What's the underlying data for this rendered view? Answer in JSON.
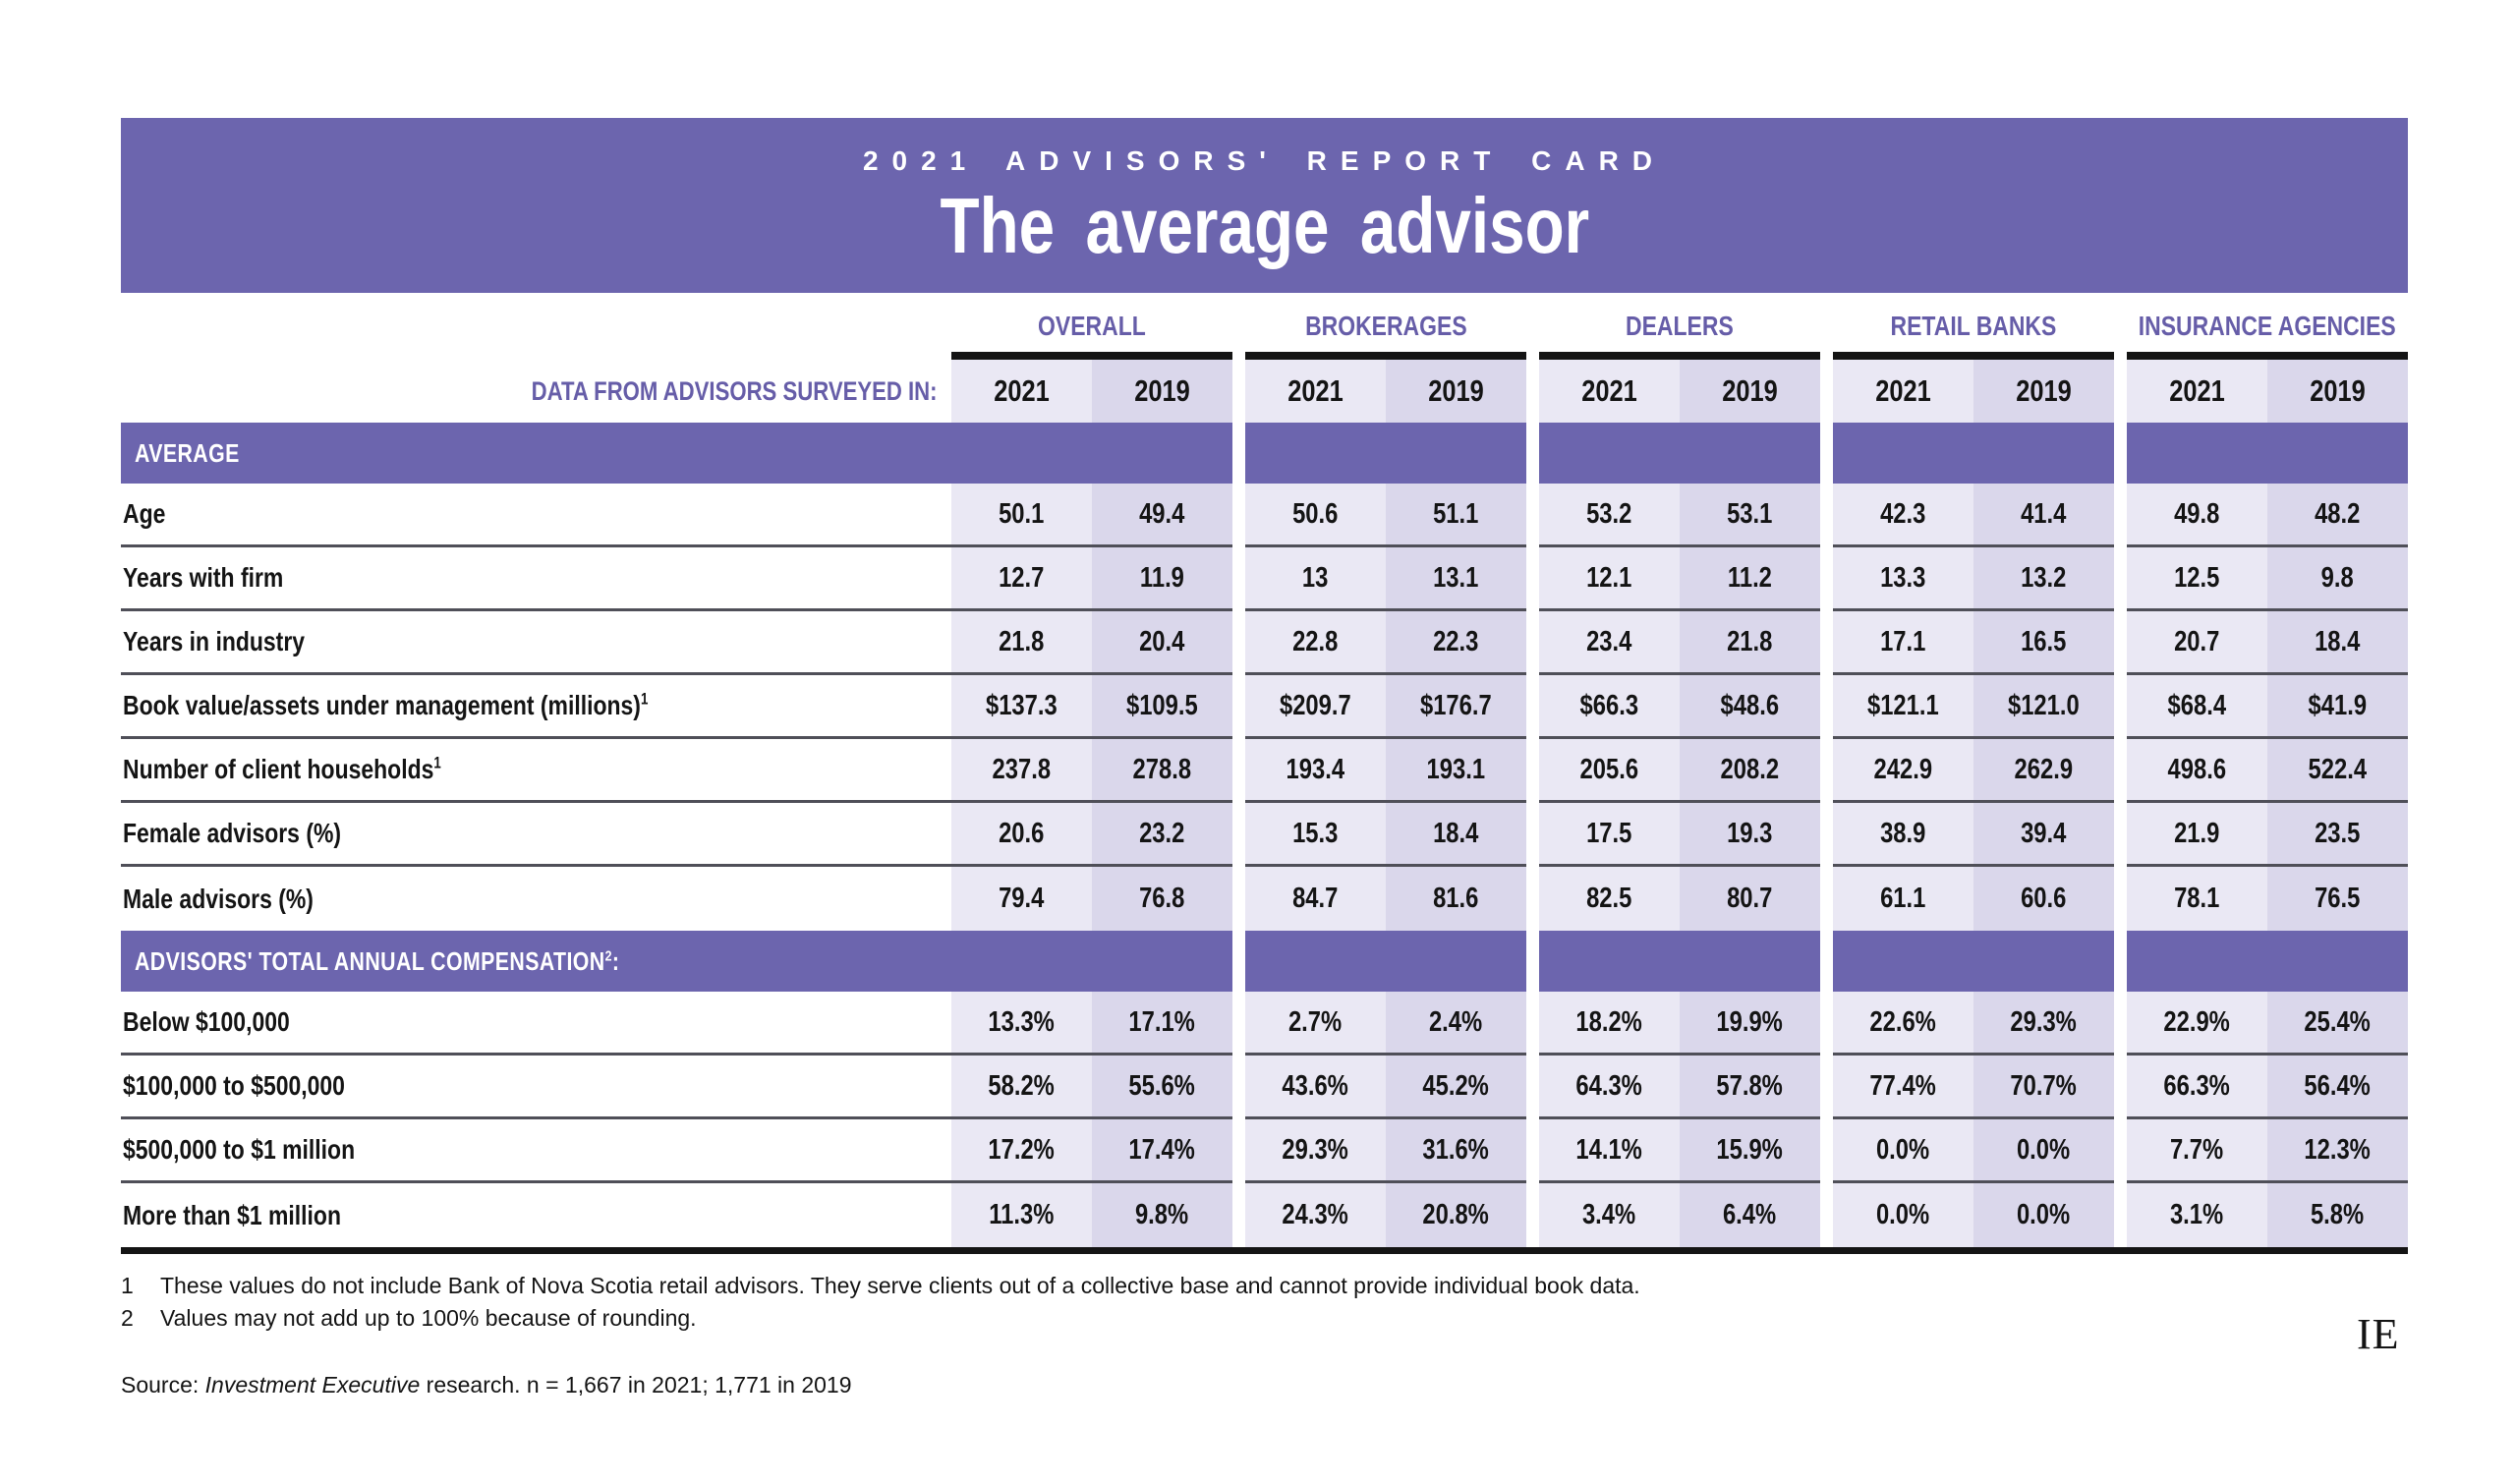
{
  "banner": {
    "kicker": "2021 ADVISORS' REPORT CARD",
    "title": "The  average advisor"
  },
  "colors": {
    "banner_purple": "#6C65AE",
    "section_purple": "#6C65AE",
    "heading_purple": "#665DA8",
    "col_2021_tint": "#EAE8F4",
    "col_2019_tint": "#DAD7EB",
    "rule_gray": "#4F4F58",
    "ink_black": "#141414"
  },
  "table": {
    "corner_label": "DATA FROM ADVISORS SURVEYED IN:",
    "groups": [
      "OVERALL",
      "BROKERAGES",
      "DEALERS",
      "RETAIL BANKS",
      "INSURANCE AGENCIES"
    ],
    "year_headers": [
      "2021",
      "2019"
    ],
    "rows": [
      {
        "type": "section",
        "label": "AVERAGE"
      },
      {
        "type": "data",
        "label": "Age",
        "values": [
          "50.1",
          "49.4",
          "50.6",
          "51.1",
          "53.2",
          "53.1",
          "42.3",
          "41.4",
          "49.8",
          "48.2"
        ]
      },
      {
        "type": "data",
        "label": "Years with firm",
        "values": [
          "12.7",
          "11.9",
          "13",
          "13.1",
          "12.1",
          "11.2",
          "13.3",
          "13.2",
          "12.5",
          "9.8"
        ]
      },
      {
        "type": "data",
        "label": "Years in industry",
        "values": [
          "21.8",
          "20.4",
          "22.8",
          "22.3",
          "23.4",
          "21.8",
          "17.1",
          "16.5",
          "20.7",
          "18.4"
        ]
      },
      {
        "type": "data",
        "label": "Book value/assets under management (millions)",
        "sup": "1",
        "values": [
          "$137.3",
          "$109.5",
          "$209.7",
          "$176.7",
          "$66.3",
          "$48.6",
          "$121.1",
          "$121.0",
          "$68.4",
          "$41.9"
        ]
      },
      {
        "type": "data",
        "label": "Number of client households",
        "sup": "1",
        "values": [
          "237.8",
          "278.8",
          "193.4",
          "193.1",
          "205.6",
          "208.2",
          "242.9",
          "262.9",
          "498.6",
          "522.4"
        ]
      },
      {
        "type": "data",
        "label": "Female advisors (%)",
        "values": [
          "20.6",
          "23.2",
          "15.3",
          "18.4",
          "17.5",
          "19.3",
          "38.9",
          "39.4",
          "21.9",
          "23.5"
        ]
      },
      {
        "type": "data",
        "label": "Male advisors (%)",
        "values": [
          "79.4",
          "76.8",
          "84.7",
          "81.6",
          "82.5",
          "80.7",
          "61.1",
          "60.6",
          "78.1",
          "76.5"
        ]
      },
      {
        "type": "section",
        "label": "ADVISORS' TOTAL ANNUAL COMPENSATION",
        "sup": "2",
        "after": ":"
      },
      {
        "type": "data",
        "label": "Below $100,000",
        "values": [
          "13.3%",
          "17.1%",
          "2.7%",
          "2.4%",
          "18.2%",
          "19.9%",
          "22.6%",
          "29.3%",
          "22.9%",
          "25.4%"
        ]
      },
      {
        "type": "data",
        "label": "$100,000 to $500,000",
        "values": [
          "58.2%",
          "55.6%",
          "43.6%",
          "45.2%",
          "64.3%",
          "57.8%",
          "77.4%",
          "70.7%",
          "66.3%",
          "56.4%"
        ]
      },
      {
        "type": "data",
        "label": "$500,000 to $1 million",
        "values": [
          "17.2%",
          "17.4%",
          "29.3%",
          "31.6%",
          "14.1%",
          "15.9%",
          "0.0%",
          "0.0%",
          "7.7%",
          "12.3%"
        ]
      },
      {
        "type": "data",
        "label": "More than $1 million",
        "values": [
          "11.3%",
          "9.8%",
          "24.3%",
          "20.8%",
          "3.4%",
          "6.4%",
          "0.0%",
          "0.0%",
          "3.1%",
          "5.8%"
        ]
      }
    ]
  },
  "footnotes": [
    {
      "num": "1",
      "text": "These values do not include Bank of Nova Scotia retail advisors. They serve clients out of a collective base and cannot provide individual book data."
    },
    {
      "num": "2",
      "text": "Values may not add up to 100% because of rounding."
    }
  ],
  "source": {
    "prefix": "Source: ",
    "publication": "Investment Executive",
    "suffix": " research. n = 1,667 in 2021; 1,771 in 2019"
  },
  "logo": "IE",
  "chart_data": {
    "type": "table",
    "title": "2021 Advisors' Report Card — The average advisor",
    "column_groups": [
      "Overall",
      "Brokerages",
      "Dealers",
      "Retail Banks",
      "Insurance Agencies"
    ],
    "years_per_group": [
      2021,
      2019
    ],
    "sections": [
      {
        "label": "Average",
        "rows": [
          {
            "label": "Age",
            "values": [
              50.1,
              49.4,
              50.6,
              51.1,
              53.2,
              53.1,
              42.3,
              41.4,
              49.8,
              48.2
            ]
          },
          {
            "label": "Years with firm",
            "values": [
              12.7,
              11.9,
              13,
              13.1,
              12.1,
              11.2,
              13.3,
              13.2,
              12.5,
              9.8
            ]
          },
          {
            "label": "Years in industry",
            "values": [
              21.8,
              20.4,
              22.8,
              22.3,
              23.4,
              21.8,
              17.1,
              16.5,
              20.7,
              18.4
            ]
          },
          {
            "label": "Book value/assets under management (millions, $)",
            "footnote": 1,
            "values": [
              137.3,
              109.5,
              209.7,
              176.7,
              66.3,
              48.6,
              121.1,
              121.0,
              68.4,
              41.9
            ]
          },
          {
            "label": "Number of client households",
            "footnote": 1,
            "values": [
              237.8,
              278.8,
              193.4,
              193.1,
              205.6,
              208.2,
              242.9,
              262.9,
              498.6,
              522.4
            ]
          },
          {
            "label": "Female advisors (%)",
            "values": [
              20.6,
              23.2,
              15.3,
              18.4,
              17.5,
              19.3,
              38.9,
              39.4,
              21.9,
              23.5
            ]
          },
          {
            "label": "Male advisors (%)",
            "values": [
              79.4,
              76.8,
              84.7,
              81.6,
              82.5,
              80.7,
              61.1,
              60.6,
              78.1,
              76.5
            ]
          }
        ]
      },
      {
        "label": "Advisors' total annual compensation (%)",
        "footnote": 2,
        "rows": [
          {
            "label": "Below $100,000",
            "values": [
              13.3,
              17.1,
              2.7,
              2.4,
              18.2,
              19.9,
              22.6,
              29.3,
              22.9,
              25.4
            ]
          },
          {
            "label": "$100,000 to $500,000",
            "values": [
              58.2,
              55.6,
              43.6,
              45.2,
              64.3,
              57.8,
              77.4,
              70.7,
              66.3,
              56.4
            ]
          },
          {
            "label": "$500,000 to $1 million",
            "values": [
              17.2,
              17.4,
              29.3,
              31.6,
              14.1,
              15.9,
              0.0,
              0.0,
              7.7,
              12.3
            ]
          },
          {
            "label": "More than $1 million",
            "values": [
              11.3,
              9.8,
              24.3,
              20.8,
              3.4,
              6.4,
              0.0,
              0.0,
              3.1,
              5.8
            ]
          }
        ]
      }
    ],
    "sample_sizes": {
      "2021": 1667,
      "2019": 1771
    }
  }
}
